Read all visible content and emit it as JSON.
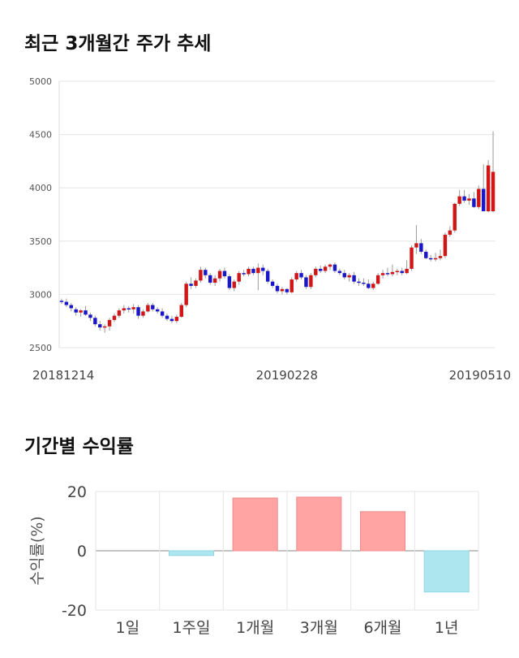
{
  "titles": {
    "price_trend": "최근 3개월간 주가 추세",
    "returns": "기간별 수익률"
  },
  "colors": {
    "up": "#d01616",
    "down": "#1a17c8",
    "positive_bar": "#ffa3a3",
    "negative_bar": "#aee6f0",
    "grid": "#e6e6e6"
  },
  "chart_data": [
    {
      "type": "candlestick",
      "title": "최근 3개월간 주가 추세",
      "ylim": [
        2500,
        5000
      ],
      "y_ticks": [
        "5000",
        "4500",
        "4000",
        "3500",
        "3000",
        "2500"
      ],
      "x_tick_labels": [
        {
          "index": 0,
          "label": "20181214"
        },
        {
          "index": 47,
          "label": "20190228"
        },
        {
          "index": 97,
          "label": "20190510"
        }
      ],
      "grid": true,
      "ohlc": [
        [
          2940,
          2960,
          2910,
          2930
        ],
        [
          2930,
          2960,
          2880,
          2900
        ],
        [
          2900,
          2920,
          2840,
          2870
        ],
        [
          2860,
          2880,
          2800,
          2830
        ],
        [
          2830,
          2860,
          2790,
          2850
        ],
        [
          2850,
          2890,
          2800,
          2810
        ],
        [
          2810,
          2830,
          2750,
          2780
        ],
        [
          2780,
          2800,
          2700,
          2720
        ],
        [
          2720,
          2750,
          2660,
          2690
        ],
        [
          2690,
          2720,
          2640,
          2700
        ],
        [
          2700,
          2780,
          2660,
          2760
        ],
        [
          2760,
          2820,
          2740,
          2800
        ],
        [
          2800,
          2870,
          2780,
          2850
        ],
        [
          2850,
          2900,
          2820,
          2870
        ],
        [
          2870,
          2890,
          2830,
          2860
        ],
        [
          2860,
          2910,
          2820,
          2880
        ],
        [
          2880,
          2900,
          2770,
          2800
        ],
        [
          2800,
          2860,
          2780,
          2840
        ],
        [
          2840,
          2920,
          2830,
          2900
        ],
        [
          2900,
          2920,
          2840,
          2860
        ],
        [
          2860,
          2880,
          2820,
          2840
        ],
        [
          2840,
          2870,
          2780,
          2800
        ],
        [
          2800,
          2820,
          2750,
          2770
        ],
        [
          2770,
          2800,
          2730,
          2750
        ],
        [
          2750,
          2810,
          2730,
          2790
        ],
        [
          2790,
          2920,
          2780,
          2900
        ],
        [
          2900,
          3120,
          2880,
          3100
        ],
        [
          3100,
          3160,
          3050,
          3080
        ],
        [
          3080,
          3150,
          3060,
          3130
        ],
        [
          3130,
          3260,
          3110,
          3230
        ],
        [
          3230,
          3250,
          3150,
          3180
        ],
        [
          3180,
          3200,
          3090,
          3110
        ],
        [
          3110,
          3180,
          3080,
          3150
        ],
        [
          3150,
          3240,
          3120,
          3220
        ],
        [
          3220,
          3250,
          3150,
          3170
        ],
        [
          3170,
          3190,
          3040,
          3060
        ],
        [
          3060,
          3140,
          3030,
          3120
        ],
        [
          3120,
          3220,
          3090,
          3200
        ],
        [
          3200,
          3230,
          3170,
          3190
        ],
        [
          3190,
          3260,
          3170,
          3240
        ],
        [
          3240,
          3260,
          3180,
          3200
        ],
        [
          3200,
          3290,
          3040,
          3250
        ],
        [
          3250,
          3280,
          3180,
          3220
        ],
        [
          3220,
          3240,
          3100,
          3120
        ],
        [
          3120,
          3140,
          3060,
          3080
        ],
        [
          3080,
          3100,
          3010,
          3030
        ],
        [
          3030,
          3070,
          3000,
          3050
        ],
        [
          3050,
          3060,
          3000,
          3020
        ],
        [
          3020,
          3160,
          3010,
          3140
        ],
        [
          3140,
          3220,
          3120,
          3200
        ],
        [
          3200,
          3230,
          3140,
          3160
        ],
        [
          3160,
          3180,
          3050,
          3070
        ],
        [
          3070,
          3200,
          3050,
          3180
        ],
        [
          3180,
          3260,
          3160,
          3240
        ],
        [
          3240,
          3270,
          3200,
          3220
        ],
        [
          3220,
          3280,
          3200,
          3260
        ],
        [
          3260,
          3290,
          3230,
          3280
        ],
        [
          3280,
          3300,
          3200,
          3220
        ],
        [
          3220,
          3240,
          3180,
          3200
        ],
        [
          3200,
          3230,
          3140,
          3160
        ],
        [
          3160,
          3200,
          3120,
          3180
        ],
        [
          3180,
          3210,
          3100,
          3120
        ],
        [
          3120,
          3150,
          3080,
          3110
        ],
        [
          3110,
          3150,
          3080,
          3100
        ],
        [
          3100,
          3140,
          3050,
          3060
        ],
        [
          3060,
          3120,
          3040,
          3100
        ],
        [
          3100,
          3200,
          3090,
          3180
        ],
        [
          3180,
          3230,
          3150,
          3200
        ],
        [
          3200,
          3250,
          3170,
          3190
        ],
        [
          3190,
          3280,
          3170,
          3210
        ],
        [
          3210,
          3240,
          3180,
          3220
        ],
        [
          3220,
          3250,
          3180,
          3200
        ],
        [
          3200,
          3320,
          3190,
          3240
        ],
        [
          3240,
          3460,
          3220,
          3440
        ],
        [
          3440,
          3650,
          3380,
          3480
        ],
        [
          3480,
          3520,
          3380,
          3400
        ],
        [
          3400,
          3420,
          3330,
          3340
        ],
        [
          3340,
          3370,
          3310,
          3330
        ],
        [
          3330,
          3390,
          3310,
          3340
        ],
        [
          3340,
          3420,
          3320,
          3360
        ],
        [
          3360,
          3580,
          3340,
          3560
        ],
        [
          3560,
          3640,
          3540,
          3600
        ],
        [
          3600,
          3860,
          3580,
          3850
        ],
        [
          3850,
          3980,
          3830,
          3920
        ],
        [
          3920,
          3980,
          3860,
          3880
        ],
        [
          3880,
          3940,
          3840,
          3900
        ],
        [
          3900,
          3960,
          3810,
          3820
        ],
        [
          3820,
          4020,
          3800,
          3990
        ],
        [
          3990,
          4220,
          3800,
          3780
        ],
        [
          3780,
          4260,
          3770,
          4210
        ],
        [
          3780,
          4530,
          3770,
          4150
        ]
      ]
    },
    {
      "type": "bar",
      "title": "기간별 수익률",
      "categories": [
        "1일",
        "1주일",
        "1개월",
        "3개월",
        "6개월",
        "1년"
      ],
      "values": [
        0,
        -1.6,
        17.8,
        18.1,
        13.2,
        -13.9
      ],
      "ylabel": "수익률(%)",
      "ylim": [
        -20,
        20
      ],
      "y_ticks": [
        "20",
        "0",
        "-20"
      ],
      "grid": true
    }
  ]
}
